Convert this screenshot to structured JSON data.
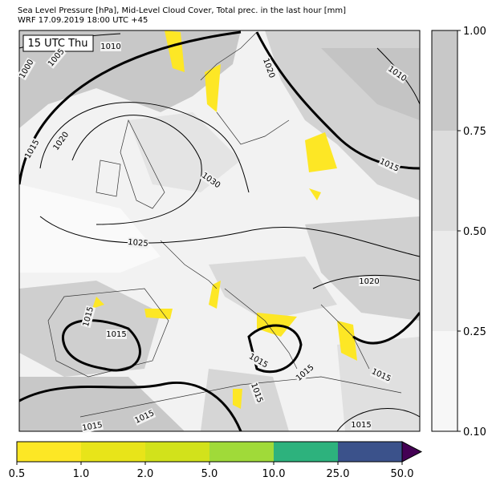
{
  "header": {
    "line1": "Sea Level Pressure [hPa], Mid-Level Cloud Cover, Total prec. in the last hour [mm]",
    "line2": "WRF 17.09.2019 18:00 UTC +45"
  },
  "map": {
    "time_label": "15 UTC Thu",
    "isobar_labels": [
      "1010",
      "1000",
      "1005",
      "1015",
      "1020",
      "1030",
      "1025",
      "1020",
      "1010",
      "1015",
      "1020",
      "1015",
      "1015",
      "1015",
      "1015",
      "1015",
      "1015",
      "1015",
      "1015",
      "1015"
    ]
  },
  "cloud_colorbar": {
    "ticks": [
      {
        "value": 0.1,
        "label": "0.10"
      },
      {
        "value": 0.25,
        "label": "0.25"
      },
      {
        "value": 0.5,
        "label": "0.50"
      },
      {
        "value": 0.75,
        "label": "0.75"
      },
      {
        "value": 1,
        "label": "1.00"
      }
    ],
    "colors": [
      "#f7f7f7",
      "#ebebeb",
      "#dcdcdc",
      "#c8c8c8"
    ]
  },
  "precip_colorbar": {
    "ticks": [
      0.5,
      {
        "value": 1,
        "label": "1.0"
      },
      {
        "value": 2,
        "label": "2.0"
      },
      {
        "value": 5,
        "label": "5.0"
      },
      {
        "value": 10,
        "label": "10.0"
      },
      {
        "value": 25,
        "label": "25.0"
      },
      {
        "value": 50,
        "label": "50.0"
      }
    ],
    "colors": [
      "#fde725",
      "#e8e419",
      "#d2e21b",
      "#a0da39",
      "#2db27d",
      "#3b528b"
    ],
    "over_color": "#440154"
  }
}
